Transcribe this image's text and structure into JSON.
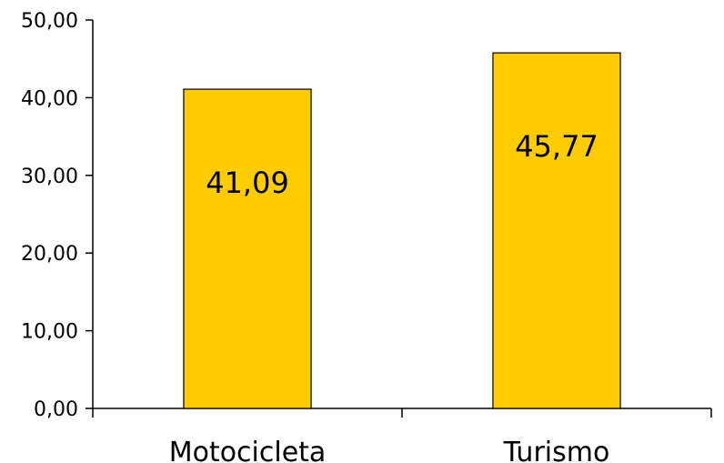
{
  "chart_data": {
    "type": "bar",
    "categories": [
      "Motocicleta",
      "Turismo"
    ],
    "values": [
      41.09,
      45.77
    ],
    "value_labels": [
      "41,09",
      "45,77"
    ],
    "ylim": [
      0,
      50
    ],
    "yticks": [
      "0,00",
      "10,00",
      "20,00",
      "30,00",
      "40,00",
      "50,00"
    ],
    "grid": false,
    "legend": "none",
    "colors": {
      "bar_fill": "#FFCC00",
      "bar_stroke": "#000000",
      "axis": "#000000"
    }
  }
}
